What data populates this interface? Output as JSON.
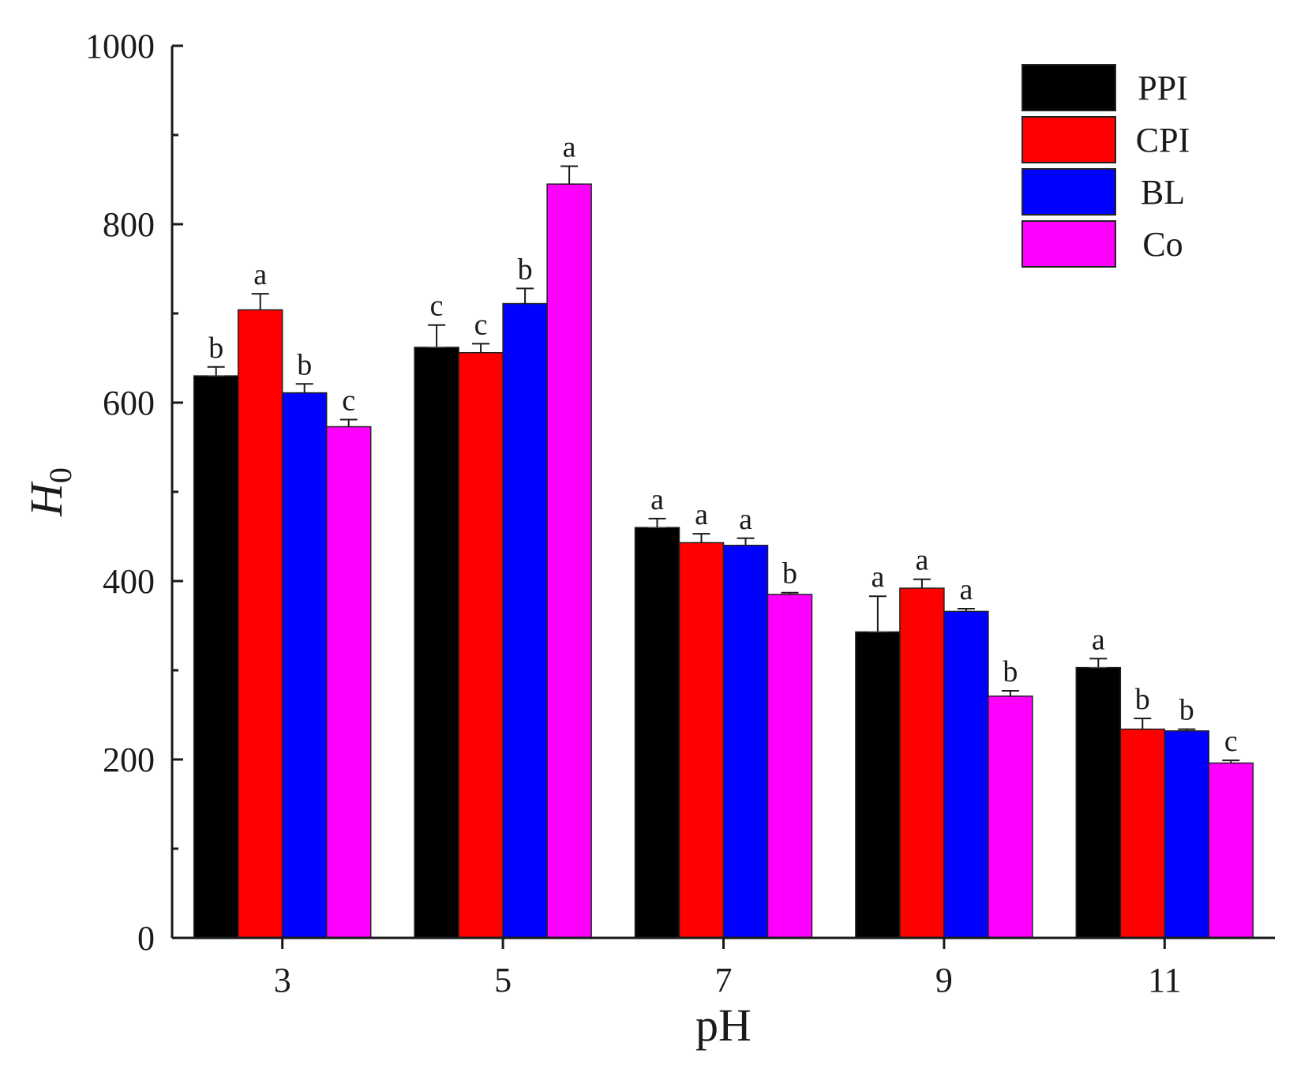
{
  "chart_data": {
    "type": "bar",
    "title": "",
    "xlabel": "pH",
    "ylabel": "H",
    "ylabel_subscript": "0",
    "ylim": [
      0,
      1000
    ],
    "yticks": [
      0,
      200,
      400,
      600,
      800,
      1000
    ],
    "categories": [
      "3",
      "5",
      "7",
      "9",
      "11"
    ],
    "legend_position": "top-right",
    "series": [
      {
        "name": "PPI",
        "color": "#000000",
        "values": [
          630,
          662,
          460,
          343,
          303
        ],
        "errors": [
          10,
          25,
          10,
          40,
          10
        ],
        "labels": [
          "b",
          "c",
          "a",
          "a",
          "a"
        ]
      },
      {
        "name": "CPI",
        "color": "#ff0000",
        "values": [
          704,
          656,
          443,
          392,
          234
        ],
        "errors": [
          18,
          10,
          10,
          10,
          12
        ],
        "labels": [
          "a",
          "c",
          "a",
          "a",
          "b"
        ]
      },
      {
        "name": "BL",
        "color": "#0000ff",
        "values": [
          611,
          711,
          440,
          366,
          232
        ],
        "errors": [
          10,
          17,
          8,
          3,
          2
        ],
        "labels": [
          "b",
          "b",
          "a",
          "a",
          "b"
        ]
      },
      {
        "name": "Co",
        "color": "#ff00ff",
        "values": [
          573,
          845,
          385,
          271,
          196
        ],
        "errors": [
          8,
          20,
          2,
          6,
          3
        ],
        "labels": [
          "c",
          "a",
          "b",
          "b",
          "c"
        ]
      }
    ]
  }
}
